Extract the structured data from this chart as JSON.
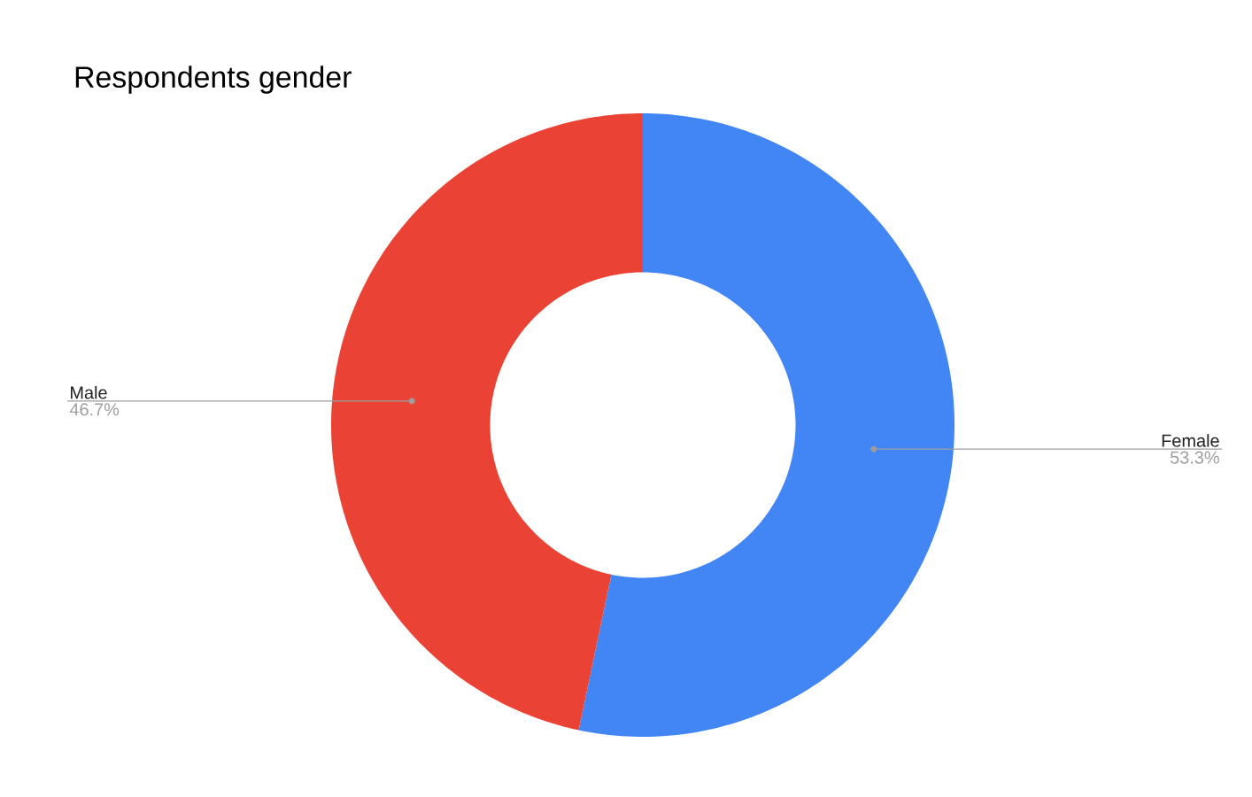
{
  "chart_data": {
    "type": "donut",
    "title": "Respondents gender",
    "categories": [
      "Female",
      "Male"
    ],
    "values": [
      53.3,
      46.7
    ],
    "colors": [
      "#4285f4",
      "#ea4335"
    ],
    "value_labels": [
      "53.3%",
      "46.7%"
    ]
  }
}
